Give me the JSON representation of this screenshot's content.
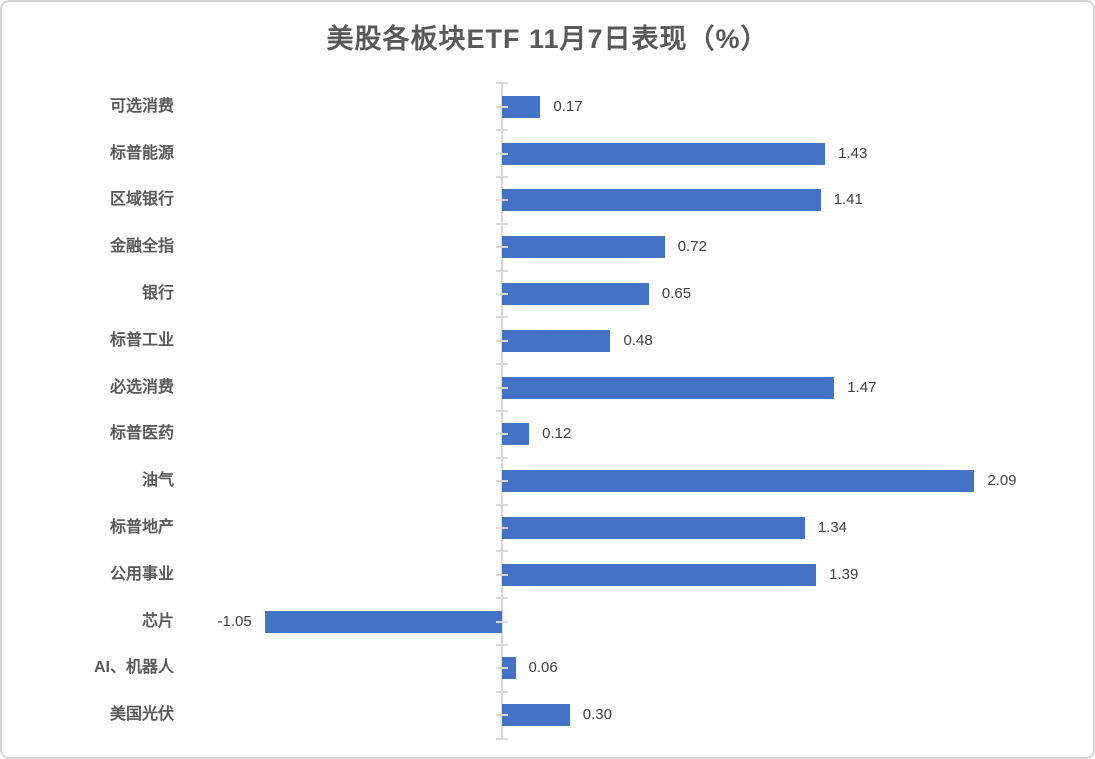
{
  "chart_data": {
    "type": "bar",
    "orientation": "horizontal",
    "title": "美股各板块ETF 11月7日表现（%）",
    "categories": [
      "可选消费",
      "标普能源",
      "区域银行",
      "金融全指",
      "银行",
      "标普工业",
      "必选消费",
      "标普医药",
      "油气",
      "标普地产",
      "公用事业",
      "芯片",
      "AI、机器人",
      "美国光伏"
    ],
    "values": [
      0.17,
      1.43,
      1.41,
      0.72,
      0.65,
      0.48,
      1.47,
      0.12,
      2.09,
      1.34,
      1.39,
      -1.05,
      0.06,
      0.3
    ],
    "value_labels": [
      "0.17",
      "1.43",
      "1.41",
      "0.72",
      "0.65",
      "0.48",
      "1.47",
      "0.12",
      "2.09",
      "1.34",
      "1.39",
      "-1.05",
      "0.06",
      "0.30"
    ],
    "xlim": [
      -1.3,
      2.6
    ],
    "grid": false,
    "legend": "none",
    "data_label_position": "outside-end",
    "colors": {
      "bar": "#4472C4",
      "axis": "#D9D9D9",
      "title_text": "#595959",
      "category_text": "#595959",
      "value_text": "#404040",
      "frame_border": "#D6D6D6",
      "background": "#FFFFFF"
    }
  }
}
